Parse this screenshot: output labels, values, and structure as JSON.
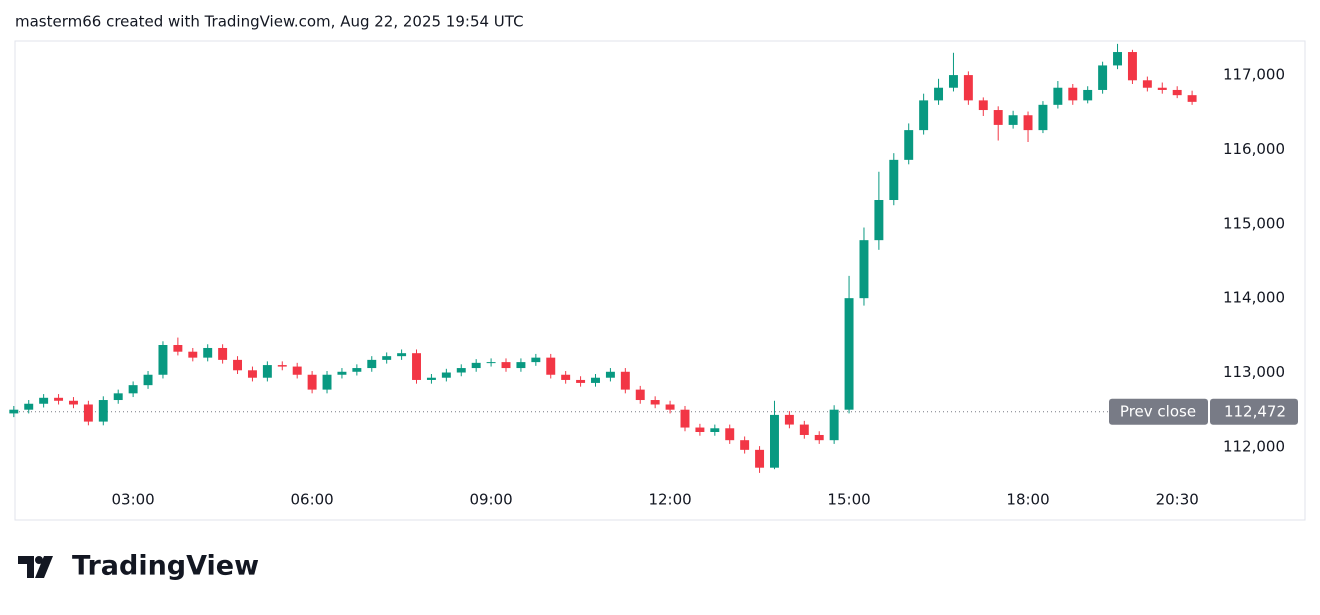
{
  "header": "masterm66 created with TradingView.com, Aug 22, 2025 19:54 UTC",
  "brand": "TradingView",
  "chart_data": {
    "type": "candlestick",
    "up_color": "#089981",
    "down_color": "#f23645",
    "x": [
      1,
      1.25,
      1.5,
      1.75,
      2,
      2.25,
      2.5,
      2.75,
      3,
      3.25,
      3.5,
      3.75,
      4,
      4.25,
      4.5,
      4.75,
      5,
      5.25,
      5.5,
      5.75,
      6,
      6.25,
      6.5,
      6.75,
      7,
      7.25,
      7.5,
      7.75,
      8,
      8.25,
      8.5,
      8.75,
      9,
      9.25,
      9.5,
      9.75,
      10,
      10.25,
      10.5,
      10.75,
      11,
      11.25,
      11.5,
      11.75,
      12,
      12.25,
      12.5,
      12.75,
      13,
      13.25,
      13.5,
      13.75,
      14,
      14.25,
      14.5,
      14.75,
      15,
      15.25,
      15.5,
      15.75,
      16,
      16.25,
      16.5,
      16.75,
      17,
      17.25,
      17.5,
      17.75,
      18,
      18.25,
      18.5,
      18.75,
      19,
      19.25,
      19.5,
      19.75,
      20,
      20.25,
      20.5,
      20.75
    ],
    "open": [
      112450,
      112500,
      112580,
      112660,
      112620,
      112570,
      112340,
      112630,
      112720,
      112830,
      112970,
      113370,
      113280,
      113200,
      113330,
      113170,
      113030,
      112930,
      113100,
      113080,
      112970,
      112770,
      112970,
      113010,
      113060,
      113170,
      113220,
      113260,
      112900,
      112930,
      113000,
      113060,
      113130,
      113140,
      113060,
      113140,
      113200,
      112970,
      112900,
      112860,
      112930,
      113010,
      112770,
      112630,
      112570,
      112500,
      112260,
      112200,
      112250,
      112090,
      111960,
      111720,
      112430,
      112300,
      112160,
      112090,
      112500,
      114000,
      114780,
      115320,
      115860,
      116260,
      116660,
      116830,
      117000,
      116660,
      116530,
      116330,
      116460,
      116260,
      116600,
      116830,
      116660,
      116800,
      117130,
      117310,
      116930,
      116830,
      116800,
      116730
    ],
    "high": [
      112550,
      112630,
      112710,
      112710,
      112670,
      112620,
      112680,
      112770,
      112880,
      113020,
      113420,
      113470,
      113330,
      113380,
      113380,
      113220,
      113080,
      113150,
      113150,
      113130,
      113020,
      113020,
      113060,
      113110,
      113220,
      113270,
      113310,
      113310,
      112980,
      113050,
      113110,
      113180,
      113190,
      113190,
      113190,
      113250,
      113250,
      113020,
      112950,
      112980,
      113060,
      113060,
      112820,
      112680,
      112620,
      112550,
      112310,
      112300,
      112300,
      112140,
      112010,
      112620,
      112480,
      112350,
      112210,
      112560,
      114300,
      114950,
      115700,
      115950,
      116350,
      116750,
      116950,
      117300,
      117050,
      116700,
      116580,
      116520,
      116510,
      116650,
      116920,
      116880,
      116850,
      117180,
      117420,
      117340,
      116980,
      116900,
      116850,
      116790
    ],
    "low": [
      112400,
      112450,
      112530,
      112570,
      112520,
      112290,
      112290,
      112580,
      112670,
      112780,
      112920,
      113230,
      113150,
      113150,
      113120,
      112980,
      112880,
      112880,
      113030,
      112920,
      112720,
      112720,
      112920,
      112960,
      113010,
      113120,
      113170,
      112850,
      112850,
      112880,
      112950,
      113010,
      113080,
      113010,
      113010,
      113090,
      112920,
      112850,
      112810,
      112810,
      112880,
      112720,
      112580,
      112520,
      112450,
      112210,
      112150,
      112150,
      112040,
      111910,
      111650,
      111700,
      112250,
      112110,
      112040,
      112040,
      112450,
      113900,
      114650,
      115250,
      115800,
      116200,
      116600,
      116780,
      116600,
      116450,
      116120,
      116280,
      116100,
      116220,
      116550,
      116600,
      116620,
      116750,
      117080,
      116880,
      116780,
      116750,
      116690,
      116600
    ],
    "close": [
      112500,
      112580,
      112660,
      112620,
      112570,
      112340,
      112630,
      112720,
      112830,
      112970,
      113370,
      113280,
      113200,
      113330,
      113170,
      113030,
      112930,
      113100,
      113080,
      112970,
      112770,
      112970,
      113010,
      113060,
      113170,
      113220,
      113260,
      112900,
      112930,
      113000,
      113060,
      113130,
      113140,
      113060,
      113140,
      113200,
      112970,
      112900,
      112860,
      112930,
      113010,
      112770,
      112630,
      112570,
      112500,
      112260,
      112200,
      112250,
      112090,
      111960,
      111720,
      112430,
      112300,
      112160,
      112090,
      112500,
      114000,
      114780,
      115320,
      115860,
      116260,
      116660,
      116830,
      117000,
      116660,
      116530,
      116330,
      116460,
      116260,
      116600,
      116830,
      116660,
      116800,
      117130,
      117310,
      116930,
      116830,
      116800,
      116730,
      116640
    ],
    "xlim": [
      1.02,
      21.05
    ],
    "xticks": [
      {
        "value": 3,
        "label": "03:00"
      },
      {
        "value": 6,
        "label": "06:00"
      },
      {
        "value": 9,
        "label": "09:00"
      },
      {
        "value": 12,
        "label": "12:00"
      },
      {
        "value": 15,
        "label": "15:00"
      },
      {
        "value": 18,
        "label": "18:00"
      },
      {
        "value": 20.5,
        "label": "20:30"
      }
    ],
    "ylim": [
      111420,
      117445
    ],
    "yticks": [
      {
        "value": 112000,
        "label": "112,000"
      },
      {
        "value": 113000,
        "label": "113,000"
      },
      {
        "value": 114000,
        "label": "114,000"
      },
      {
        "value": 115000,
        "label": "115,000"
      },
      {
        "value": 116000,
        "label": "116,000"
      },
      {
        "value": 117000,
        "label": "117,000"
      }
    ],
    "prev_close": {
      "name": "Prev close",
      "value": 112472,
      "label": "112,472"
    }
  }
}
